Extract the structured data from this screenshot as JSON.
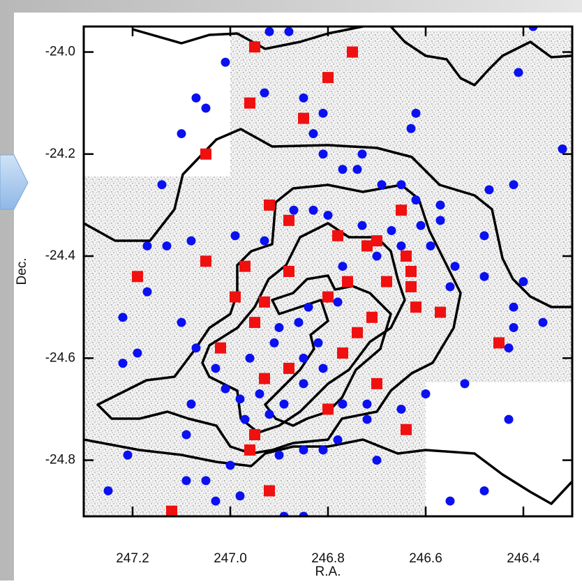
{
  "chart_data": {
    "type": "scatter",
    "xlabel": "R.A.",
    "ylabel": "Dec.",
    "xlim": [
      247.3,
      246.3
    ],
    "ylim": [
      -24.91,
      -23.95
    ],
    "xticks": [
      247.2,
      {
        "value": 247.0,
        "label": "247.0"
      },
      246.8,
      246.6,
      246.4
    ],
    "yticks": [
      {
        "value": -24.0,
        "label": "-24.0"
      },
      -24.2,
      -24.4,
      -24.6,
      -24.8
    ],
    "series": [
      {
        "color": "#0a10f0",
        "marker": "circle",
        "x": [
          246.92,
          246.88,
          247.01,
          247.07,
          247.05,
          247.1,
          246.93,
          246.85,
          246.81,
          246.83,
          246.81,
          246.73,
          246.62,
          246.63,
          246.74,
          246.77,
          246.69,
          246.65,
          246.62,
          246.57,
          246.47,
          246.42,
          246.32,
          246.38,
          246.41,
          246.57,
          246.61,
          246.67,
          246.73,
          246.8,
          246.83,
          246.87,
          246.93,
          246.99,
          247.08,
          247.13,
          247.17,
          247.17,
          247.22,
          247.1,
          247.07,
          247.19,
          246.96,
          246.91,
          246.9,
          246.84,
          246.86,
          246.78,
          246.82,
          246.85,
          246.81,
          246.85,
          246.89,
          246.92,
          246.94,
          246.97,
          246.98,
          247.01,
          247.03,
          246.77,
          246.72,
          246.72,
          246.78,
          246.65,
          246.6,
          246.52,
          246.43,
          246.42,
          246.42,
          246.4,
          246.36,
          246.48,
          246.48,
          246.55,
          246.54,
          246.59,
          246.65,
          246.7,
          246.77,
          246.43,
          246.48,
          246.55,
          247.21,
          247.25,
          247.09,
          247.05,
          247.03,
          246.98,
          247.0,
          246.9,
          246.85,
          246.81,
          246.89,
          246.85,
          247.09,
          247.08,
          246.7,
          247.22,
          247.14
        ],
        "y": [
          -23.96,
          -23.96,
          -24.02,
          -24.09,
          -24.11,
          -24.16,
          -24.08,
          -24.09,
          -24.12,
          -24.16,
          -24.2,
          -24.2,
          -24.12,
          -24.15,
          -24.23,
          -24.23,
          -24.26,
          -24.26,
          -24.29,
          -24.3,
          -24.27,
          -24.26,
          -24.19,
          -23.95,
          -24.04,
          -24.33,
          -24.34,
          -24.35,
          -24.34,
          -24.32,
          -24.31,
          -24.31,
          -24.37,
          -24.36,
          -24.37,
          -24.38,
          -24.38,
          -24.47,
          -24.52,
          -24.53,
          -24.58,
          -24.59,
          -24.6,
          -24.57,
          -24.54,
          -24.5,
          -24.53,
          -24.49,
          -24.57,
          -24.6,
          -24.62,
          -24.65,
          -24.69,
          -24.71,
          -24.67,
          -24.72,
          -24.68,
          -24.66,
          -24.62,
          -24.69,
          -24.69,
          -24.72,
          -24.76,
          -24.7,
          -24.67,
          -24.65,
          -24.58,
          -24.54,
          -24.5,
          -24.45,
          -24.53,
          -24.44,
          -24.36,
          -24.46,
          -24.42,
          -24.38,
          -24.38,
          -24.4,
          -24.42,
          -24.72,
          -24.86,
          -24.88,
          -24.79,
          -24.86,
          -24.84,
          -24.84,
          -24.88,
          -24.87,
          -24.81,
          -24.79,
          -24.78,
          -24.78,
          -24.91,
          -24.91,
          -24.75,
          -24.69,
          -24.8,
          -24.61,
          -24.26
        ]
      },
      {
        "color": "#f01010",
        "marker": "square",
        "x": [
          246.95,
          246.75,
          246.8,
          246.96,
          246.85,
          247.05,
          246.92,
          246.88,
          246.65,
          246.78,
          246.7,
          246.72,
          246.64,
          247.05,
          246.97,
          246.88,
          246.68,
          247.19,
          246.63,
          246.63,
          246.76,
          246.8,
          246.99,
          246.93,
          246.62,
          246.57,
          246.71,
          246.95,
          246.74,
          247.02,
          246.77,
          246.45,
          246.93,
          246.88,
          246.7,
          246.8,
          246.95,
          246.64,
          246.96,
          246.92,
          247.12
        ],
        "y": [
          -23.99,
          -24.0,
          -24.05,
          -24.1,
          -24.13,
          -24.2,
          -24.3,
          -24.33,
          -24.31,
          -24.36,
          -24.37,
          -24.38,
          -24.4,
          -24.41,
          -24.42,
          -24.43,
          -24.45,
          -24.44,
          -24.43,
          -24.46,
          -24.45,
          -24.48,
          -24.48,
          -24.49,
          -24.5,
          -24.51,
          -24.52,
          -24.53,
          -24.55,
          -24.58,
          -24.59,
          -24.57,
          -24.64,
          -24.62,
          -24.65,
          -24.7,
          -24.75,
          -24.74,
          -24.78,
          -24.86,
          -24.9
        ]
      }
    ]
  }
}
